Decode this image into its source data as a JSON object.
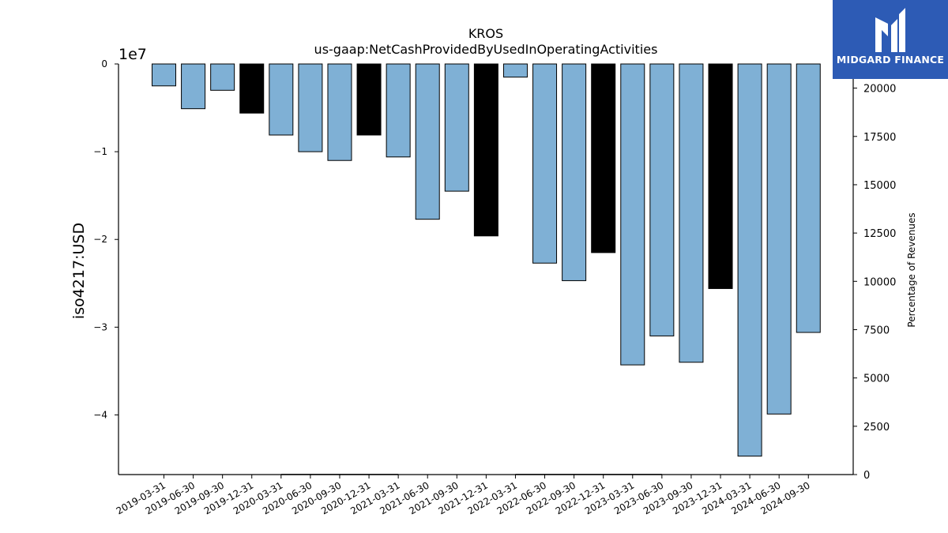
{
  "chart_data": {
    "type": "bar",
    "title": "KROS",
    "subtitle": "us-gaap:NetCashProvidedByUsedInOperatingActivities",
    "ylabel": "iso4217:USD",
    "y_offset_label": "1e7",
    "y2label": "Percentage of Revenues",
    "ylim": [
      -4.68,
      0
    ],
    "y_unit_multiplier": 10000000,
    "y_ticks": [
      0,
      -1,
      -2,
      -3,
      -4
    ],
    "y_tick_labels": [
      "0",
      "−1",
      "−2",
      "−3",
      "−4"
    ],
    "y2lim": [
      0,
      21250
    ],
    "y2_ticks": [
      0,
      2500,
      5000,
      7500,
      10000,
      12500,
      15000,
      17500,
      20000
    ],
    "y2_tick_labels": [
      "0",
      "2500",
      "5000",
      "7500",
      "10000",
      "12500",
      "15000",
      "17500",
      "20000"
    ],
    "categories": [
      "2019-03-31",
      "2019-06-30",
      "2019-09-30",
      "2019-12-31",
      "2020-03-31",
      "2020-06-30",
      "2020-09-30",
      "2020-12-31",
      "2021-03-31",
      "2021-06-30",
      "2021-09-30",
      "2021-12-31",
      "2022-03-31",
      "2022-06-30",
      "2022-09-30",
      "2022-12-31",
      "2023-03-31",
      "2023-06-30",
      "2023-09-30",
      "2023-12-31",
      "2024-03-31",
      "2024-06-30",
      "2024-09-30"
    ],
    "values": [
      -0.25,
      -0.51,
      -0.3,
      -0.56,
      -0.81,
      -1.0,
      -1.1,
      -0.81,
      -1.06,
      -1.77,
      -1.45,
      -1.96,
      -0.15,
      -2.27,
      -2.47,
      -2.15,
      -3.43,
      -3.1,
      -3.4,
      -2.56,
      -4.47,
      -3.99,
      -3.06
    ],
    "bar_colors": [
      "#7fb0d5",
      "#7fb0d5",
      "#7fb0d5",
      "#000000",
      "#7fb0d5",
      "#7fb0d5",
      "#7fb0d5",
      "#000000",
      "#7fb0d5",
      "#7fb0d5",
      "#7fb0d5",
      "#000000",
      "#7fb0d5",
      "#7fb0d5",
      "#7fb0d5",
      "#000000",
      "#7fb0d5",
      "#7fb0d5",
      "#7fb0d5",
      "#000000",
      "#7fb0d5",
      "#7fb0d5",
      "#7fb0d5"
    ],
    "secondary_series": {
      "name": "",
      "color": "#000000",
      "values": [
        null,
        null,
        null,
        null,
        5,
        5,
        5,
        5,
        5,
        null,
        3,
        null,
        3,
        5,
        5,
        5,
        5,
        5,
        null,
        null,
        null,
        null,
        null
      ]
    },
    "grid": false,
    "legend": false
  },
  "logo": {
    "text": "MIDGARD FINANCE",
    "bg_color": "#2d5bb5"
  }
}
